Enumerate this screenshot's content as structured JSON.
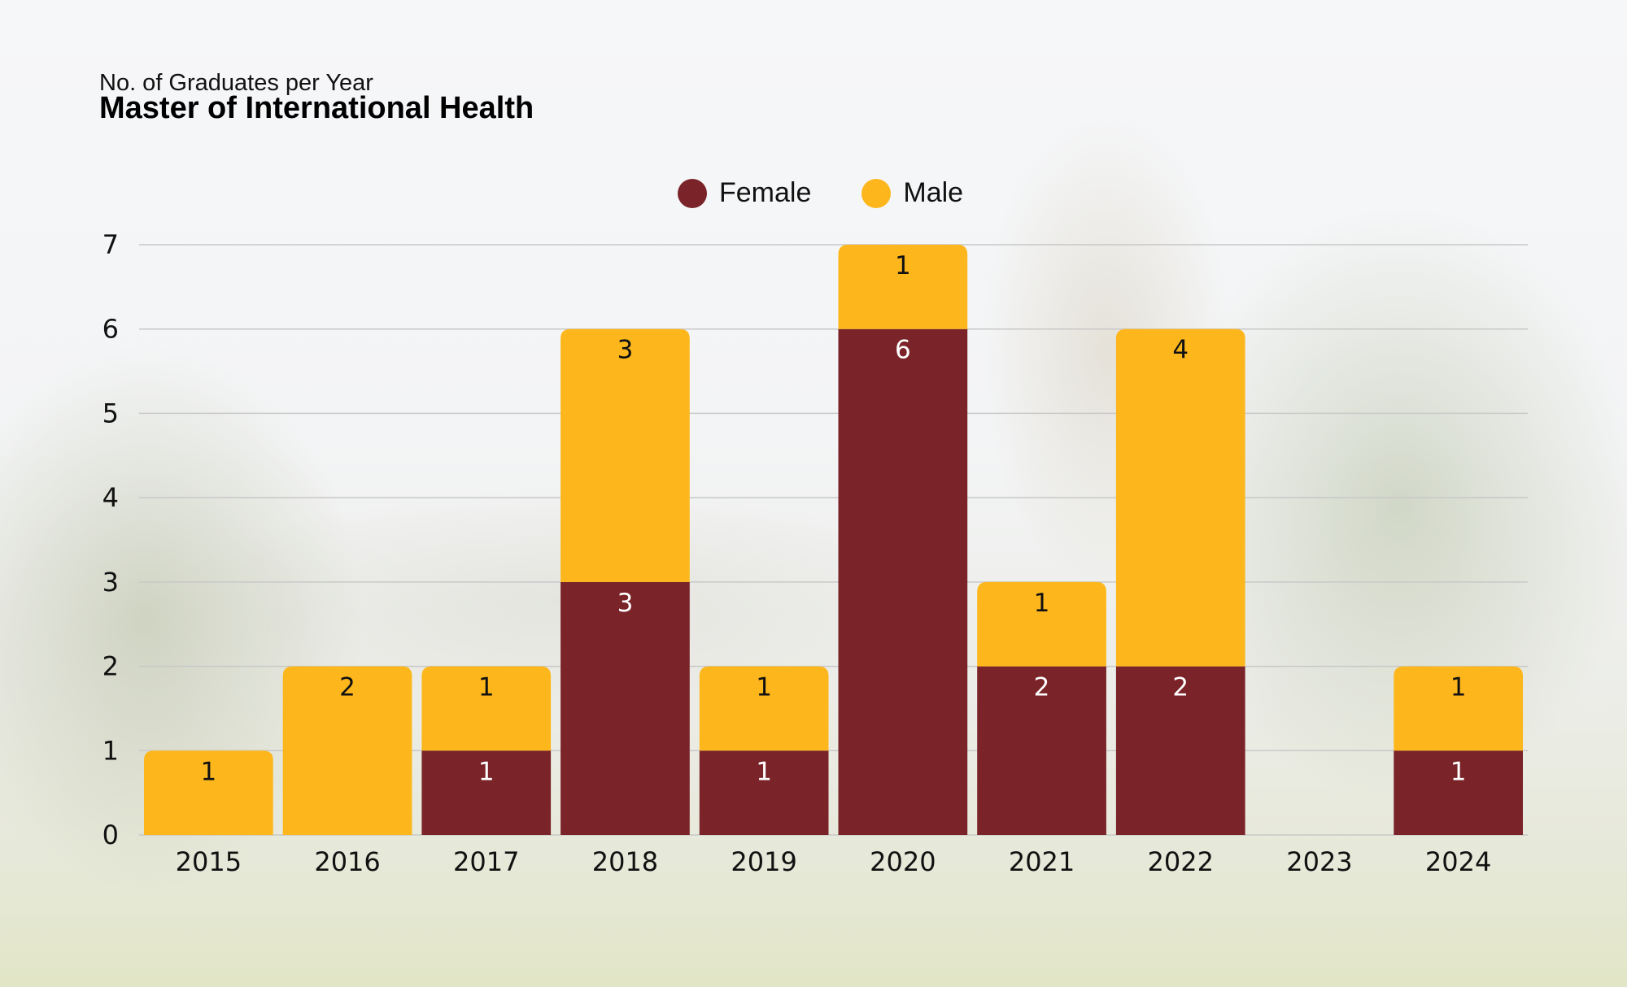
{
  "header": {
    "subtitle": "No. of Graduates per Year",
    "title": "Master of International Health"
  },
  "chart_data": {
    "type": "bar",
    "stacked": true,
    "title": "Master of International Health",
    "subtitle": "No. of Graduates per Year",
    "xlabel": "",
    "ylabel": "",
    "categories": [
      "2015",
      "2016",
      "2017",
      "2018",
      "2019",
      "2020",
      "2021",
      "2022",
      "2023",
      "2024"
    ],
    "series": [
      {
        "name": "Female",
        "color": "#7a2328",
        "label_color": "#ffffff",
        "values": [
          0,
          0,
          1,
          3,
          1,
          6,
          2,
          2,
          0,
          1
        ]
      },
      {
        "name": "Male",
        "color": "#fdb71c",
        "label_color": "#111111",
        "values": [
          1,
          2,
          1,
          3,
          1,
          1,
          1,
          4,
          0,
          1
        ]
      }
    ],
    "ylim": [
      0,
      7
    ],
    "yticks": [
      0,
      1,
      2,
      3,
      4,
      5,
      6,
      7
    ],
    "grid": true,
    "legend_position": "top-center",
    "data_labels": true
  }
}
